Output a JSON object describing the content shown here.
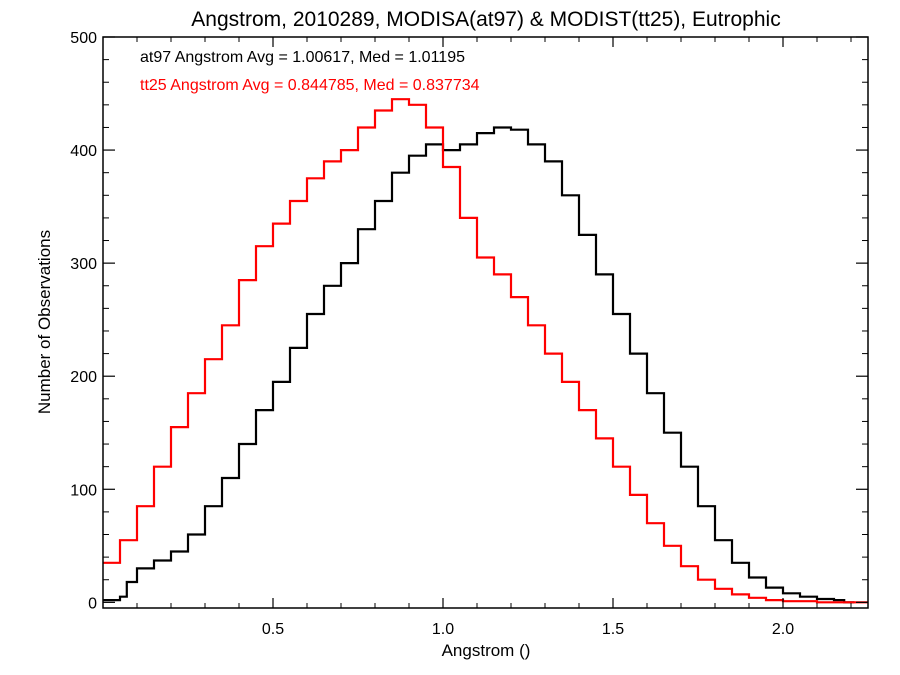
{
  "chart_data": {
    "type": "line",
    "title": "Angstrom, 2010289, MODISA(at97) & MODIST(tt25), Eutrophic",
    "xlabel": "Angstrom ()",
    "ylabel": "Number of Observations",
    "xlim": [
      0.0,
      2.25
    ],
    "ylim": [
      -5,
      500
    ],
    "xticks": [
      0.5,
      1.0,
      1.5,
      2.0
    ],
    "xtick_labels": [
      "0.5",
      "1.0",
      "1.5",
      "2.0"
    ],
    "yticks": [
      0,
      100,
      200,
      300,
      400,
      500
    ],
    "ytick_labels": [
      "0",
      "100",
      "200",
      "300",
      "400",
      "500"
    ],
    "grid": false,
    "legend_position": "top-left",
    "annotations": [
      {
        "text": "at97 Angstrom Avg = 1.00617, Med = 1.01195",
        "color": "#000000"
      },
      {
        "text": "tt25 Angstrom Avg = 0.844785, Med = 0.837734",
        "color": "#ff0000"
      }
    ],
    "series": [
      {
        "color": "#000000",
        "style": "step",
        "points": [
          [
            0.0,
            2
          ],
          [
            0.05,
            5
          ],
          [
            0.07,
            18
          ],
          [
            0.1,
            30
          ],
          [
            0.15,
            37
          ],
          [
            0.2,
            45
          ],
          [
            0.25,
            60
          ],
          [
            0.3,
            85
          ],
          [
            0.35,
            110
          ],
          [
            0.4,
            140
          ],
          [
            0.45,
            170
          ],
          [
            0.5,
            195
          ],
          [
            0.55,
            225
          ],
          [
            0.6,
            255
          ],
          [
            0.65,
            280
          ],
          [
            0.7,
            300
          ],
          [
            0.75,
            330
          ],
          [
            0.8,
            355
          ],
          [
            0.85,
            380
          ],
          [
            0.9,
            395
          ],
          [
            0.95,
            405
          ],
          [
            1.0,
            400
          ],
          [
            1.05,
            405
          ],
          [
            1.1,
            415
          ],
          [
            1.15,
            420
          ],
          [
            1.2,
            418
          ],
          [
            1.25,
            405
          ],
          [
            1.3,
            390
          ],
          [
            1.35,
            360
          ],
          [
            1.4,
            325
          ],
          [
            1.45,
            290
          ],
          [
            1.5,
            255
          ],
          [
            1.55,
            220
          ],
          [
            1.6,
            185
          ],
          [
            1.65,
            150
          ],
          [
            1.7,
            120
          ],
          [
            1.75,
            85
          ],
          [
            1.8,
            55
          ],
          [
            1.85,
            35
          ],
          [
            1.9,
            22
          ],
          [
            1.95,
            13
          ],
          [
            2.0,
            8
          ],
          [
            2.05,
            5
          ],
          [
            2.1,
            3
          ],
          [
            2.15,
            2
          ],
          [
            2.18,
            0
          ]
        ]
      },
      {
        "color": "#ff0000",
        "style": "step",
        "points": [
          [
            0.0,
            35
          ],
          [
            0.05,
            55
          ],
          [
            0.1,
            85
          ],
          [
            0.15,
            120
          ],
          [
            0.2,
            155
          ],
          [
            0.25,
            185
          ],
          [
            0.3,
            215
          ],
          [
            0.35,
            245
          ],
          [
            0.4,
            285
          ],
          [
            0.45,
            315
          ],
          [
            0.5,
            335
          ],
          [
            0.55,
            355
          ],
          [
            0.6,
            375
          ],
          [
            0.65,
            390
          ],
          [
            0.7,
            400
          ],
          [
            0.75,
            420
          ],
          [
            0.8,
            435
          ],
          [
            0.85,
            445
          ],
          [
            0.9,
            440
          ],
          [
            0.95,
            420
          ],
          [
            1.0,
            385
          ],
          [
            1.05,
            340
          ],
          [
            1.1,
            305
          ],
          [
            1.15,
            290
          ],
          [
            1.2,
            270
          ],
          [
            1.25,
            245
          ],
          [
            1.3,
            220
          ],
          [
            1.35,
            195
          ],
          [
            1.4,
            170
          ],
          [
            1.45,
            145
          ],
          [
            1.5,
            120
          ],
          [
            1.55,
            95
          ],
          [
            1.6,
            70
          ],
          [
            1.65,
            50
          ],
          [
            1.7,
            32
          ],
          [
            1.75,
            20
          ],
          [
            1.8,
            12
          ],
          [
            1.85,
            7
          ],
          [
            1.9,
            4
          ],
          [
            1.95,
            2
          ],
          [
            2.0,
            1
          ],
          [
            2.1,
            0
          ],
          [
            2.25,
            0
          ]
        ]
      }
    ]
  }
}
